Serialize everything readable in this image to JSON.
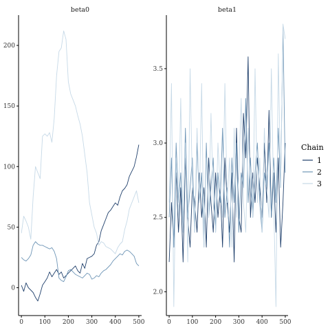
{
  "chart_data": [
    {
      "type": "line",
      "title": "beta0",
      "xlim": [
        -12,
        512
      ],
      "ylim": [
        -23,
        225
      ],
      "x_ticks": [
        0,
        100,
        200,
        300,
        400,
        500
      ],
      "y_ticks": [
        0,
        50,
        100,
        150,
        200
      ],
      "series": [
        {
          "name": "1",
          "color": "#1f3f6b",
          "x": [
            0,
            10,
            20,
            30,
            40,
            50,
            60,
            70,
            80,
            90,
            100,
            110,
            120,
            130,
            140,
            150,
            160,
            170,
            180,
            190,
            200,
            210,
            220,
            230,
            240,
            250,
            260,
            270,
            280,
            290,
            300,
            310,
            320,
            330,
            340,
            350,
            360,
            370,
            380,
            390,
            400,
            410,
            420,
            430,
            440,
            450,
            460,
            470,
            480,
            490,
            500
          ],
          "values": [
            2,
            -3,
            4,
            0,
            -2,
            -4,
            -8,
            -11,
            -5,
            2,
            5,
            8,
            13,
            9,
            12,
            15,
            11,
            13,
            8,
            10,
            12,
            14,
            16,
            18,
            14,
            12,
            20,
            16,
            24,
            25,
            26,
            28,
            35,
            38,
            47,
            52,
            57,
            62,
            64,
            67,
            70,
            68,
            75,
            80,
            82,
            85,
            92,
            96,
            100,
            108,
            118
          ]
        },
        {
          "name": "2",
          "color": "#6e95b6",
          "x": [
            0,
            10,
            20,
            30,
            40,
            50,
            60,
            70,
            80,
            90,
            100,
            110,
            120,
            130,
            140,
            150,
            160,
            170,
            180,
            190,
            200,
            210,
            220,
            230,
            240,
            250,
            260,
            270,
            280,
            290,
            300,
            310,
            320,
            330,
            340,
            350,
            360,
            370,
            380,
            390,
            400,
            410,
            420,
            430,
            440,
            450,
            460,
            470,
            480,
            490,
            500
          ],
          "values": [
            25,
            23,
            22,
            24,
            27,
            35,
            38,
            36,
            35,
            35,
            34,
            33,
            32,
            33,
            30,
            24,
            8,
            6,
            5,
            9,
            14,
            15,
            13,
            11,
            10,
            9,
            8,
            10,
            12,
            11,
            7,
            8,
            10,
            9,
            12,
            14,
            15,
            17,
            19,
            22,
            24,
            26,
            28,
            27,
            30,
            31,
            30,
            28,
            26,
            20,
            18
          ]
        },
        {
          "name": "3",
          "color": "#c6d9e7",
          "x": [
            0,
            10,
            20,
            30,
            40,
            50,
            60,
            70,
            80,
            90,
            100,
            110,
            120,
            130,
            140,
            150,
            160,
            170,
            180,
            190,
            200,
            210,
            220,
            230,
            240,
            250,
            260,
            270,
            280,
            290,
            300,
            310,
            320,
            330,
            340,
            350,
            360,
            370,
            380,
            390,
            400,
            410,
            420,
            430,
            440,
            450,
            460,
            470,
            480,
            490,
            500
          ],
          "values": [
            45,
            59,
            55,
            50,
            40,
            75,
            100,
            95,
            90,
            125,
            127,
            125,
            128,
            120,
            140,
            175,
            195,
            198,
            212,
            205,
            170,
            160,
            155,
            150,
            142,
            135,
            125,
            110,
            95,
            70,
            60,
            50,
            45,
            35,
            38,
            37,
            34,
            33,
            32,
            30,
            28,
            33,
            36,
            38,
            48,
            55,
            65,
            70,
            75,
            80,
            70
          ]
        }
      ]
    },
    {
      "type": "line",
      "title": "beta1",
      "xlim": [
        -12,
        512
      ],
      "ylim": [
        1.84,
        3.86
      ],
      "x_ticks": [
        0,
        100,
        200,
        300,
        400,
        500
      ],
      "y_ticks": [
        2.0,
        2.5,
        3.0,
        3.5
      ],
      "y_tick_labels": [
        "2.0",
        "2.5",
        "3.0",
        "3.5"
      ],
      "series": [
        {
          "name": "1",
          "color": "#1f3f6b",
          "x": [
            0,
            10,
            20,
            30,
            40,
            50,
            60,
            70,
            80,
            90,
            100,
            110,
            120,
            130,
            140,
            150,
            160,
            170,
            180,
            190,
            200,
            210,
            220,
            230,
            240,
            250,
            260,
            270,
            280,
            290,
            300,
            310,
            320,
            330,
            340,
            350,
            360,
            370,
            380,
            390,
            400,
            410,
            420,
            430,
            440,
            450,
            460,
            470,
            480,
            490,
            500
          ],
          "values": [
            2.2,
            2.6,
            2.3,
            2.8,
            2.4,
            2.7,
            2.2,
            2.9,
            2.5,
            2.3,
            2.7,
            2.6,
            2.4,
            2.8,
            2.5,
            2.7,
            2.3,
            2.9,
            2.6,
            2.4,
            2.8,
            2.5,
            2.7,
            2.3,
            2.9,
            2.6,
            2.4,
            2.8,
            2.2,
            3.1,
            2.5,
            2.4,
            3.2,
            2.9,
            3.58,
            2.5,
            2.8,
            2.6,
            2.9,
            2.7,
            2.5,
            3.0,
            2.6,
            3.22,
            2.5,
            2.8,
            2.4,
            2.9,
            2.3,
            2.6,
            3.0
          ]
        },
        {
          "name": "2",
          "color": "#6e95b6",
          "x": [
            0,
            10,
            20,
            30,
            40,
            50,
            60,
            70,
            80,
            90,
            100,
            110,
            120,
            130,
            140,
            150,
            160,
            170,
            180,
            190,
            200,
            210,
            220,
            230,
            240,
            250,
            260,
            270,
            280,
            290,
            300,
            310,
            320,
            330,
            340,
            350,
            360,
            370,
            380,
            390,
            400,
            410,
            420,
            430,
            440,
            450,
            460,
            470,
            480,
            490,
            500
          ],
          "values": [
            2.5,
            2.9,
            2.3,
            3.0,
            2.6,
            2.8,
            2.4,
            3.1,
            2.5,
            2.7,
            2.9,
            2.4,
            3.0,
            2.6,
            2.8,
            2.3,
            3.0,
            2.5,
            2.7,
            2.9,
            2.4,
            2.8,
            2.6,
            3.1,
            2.5,
            2.7,
            2.3,
            2.9,
            2.6,
            3.0,
            2.4,
            2.8,
            2.7,
            3.3,
            2.6,
            2.9,
            2.5,
            2.8,
            3.0,
            2.6,
            2.4,
            2.8,
            2.7,
            3.0,
            2.5,
            2.9,
            2.6,
            3.1,
            2.7,
            3.78,
            2.8
          ]
        },
        {
          "name": "3",
          "color": "#c6d9e7",
          "x": [
            0,
            10,
            20,
            30,
            40,
            50,
            60,
            70,
            80,
            90,
            100,
            110,
            120,
            130,
            140,
            150,
            160,
            170,
            180,
            190,
            200,
            210,
            220,
            230,
            240,
            250,
            260,
            270,
            280,
            290,
            300,
            310,
            320,
            330,
            340,
            350,
            360,
            370,
            380,
            390,
            400,
            410,
            420,
            430,
            440,
            450,
            460,
            470,
            480,
            490,
            500
          ],
          "values": [
            2.6,
            3.4,
            1.9,
            2.9,
            2.5,
            3.3,
            2.4,
            3.0,
            2.2,
            3.5,
            2.7,
            2.4,
            3.1,
            2.6,
            3.4,
            2.3,
            2.9,
            2.5,
            3.2,
            2.6,
            2.4,
            3.0,
            2.7,
            2.5,
            3.4,
            2.6,
            2.9,
            2.3,
            3.1,
            2.5,
            2.8,
            3.3,
            2.6,
            2.4,
            3.1,
            2.7,
            2.5,
            3.5,
            2.6,
            2.9,
            2.4,
            3.1,
            2.7,
            2.5,
            3.5,
            2.6,
            1.9,
            3.6,
            2.7,
            3.8,
            3.7
          ]
        }
      ]
    }
  ],
  "legend": {
    "title": "Chain",
    "items": [
      {
        "label": "1",
        "color": "#1f3f6b"
      },
      {
        "label": "2",
        "color": "#6e95b6"
      },
      {
        "label": "3",
        "color": "#c6d9e7"
      }
    ]
  }
}
